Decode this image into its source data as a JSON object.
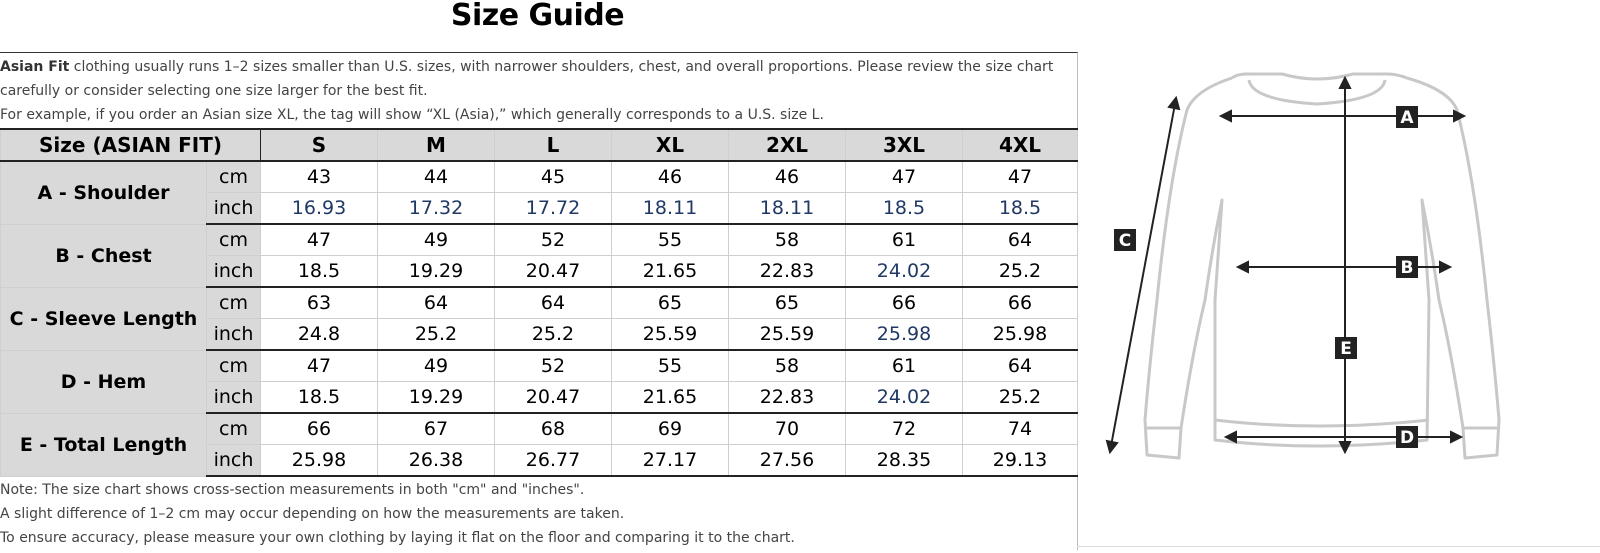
{
  "title": "Size Guide",
  "intro": {
    "bold_lead": "Asian Fit",
    "line1": " clothing usually runs 1–2 sizes smaller than U.S. sizes, with narrower shoulders, chest, and overall proportions. Please review the size chart carefully or consider selecting one size larger for the best fit.",
    "line2": "For example, if you order an Asian size XL, the tag will show “XL (Asia),” which generally corresponds to a U.S. size L."
  },
  "table": {
    "header": "Size (ASIAN FIT)",
    "sizes": [
      "S",
      "M",
      "L",
      "XL",
      "2XL",
      "3XL",
      "4XL"
    ],
    "unit_cm": "cm",
    "unit_inch": "inch",
    "rows": [
      {
        "label": "A - Shoulder",
        "cm": [
          "43",
          "44",
          "45",
          "46",
          "46",
          "47",
          "47"
        ],
        "inch": [
          "16.93",
          "17.32",
          "17.72",
          "18.11",
          "18.11",
          "18.5",
          "18.5"
        ]
      },
      {
        "label": "B - Chest",
        "cm": [
          "47",
          "49",
          "52",
          "55",
          "58",
          "61",
          "64"
        ],
        "inch": [
          "18.5",
          "19.29",
          "20.47",
          "21.65",
          "22.83",
          "24.02",
          "25.2"
        ]
      },
      {
        "label": "C - Sleeve Length",
        "cm": [
          "63",
          "64",
          "64",
          "65",
          "65",
          "66",
          "66"
        ],
        "inch": [
          "24.8",
          "25.2",
          "25.2",
          "25.59",
          "25.59",
          "25.98",
          "25.98"
        ]
      },
      {
        "label": "D - Hem",
        "cm": [
          "47",
          "49",
          "52",
          "55",
          "58",
          "61",
          "64"
        ],
        "inch": [
          "18.5",
          "19.29",
          "20.47",
          "21.65",
          "22.83",
          "24.02",
          "25.2"
        ]
      },
      {
        "label": "E - Total Length",
        "cm": [
          "66",
          "67",
          "68",
          "69",
          "70",
          "72",
          "74"
        ],
        "inch": [
          "25.98",
          "26.38",
          "26.77",
          "27.17",
          "27.56",
          "28.35",
          "29.13"
        ]
      }
    ]
  },
  "notes": [
    "Note: The size chart shows cross-section measurements in both \"cm\" and \"inches\".",
    "A slight difference of 1–2 cm may occur depending on how the measurements are taken.",
    "To ensure accuracy, please measure your own clothing by laying it flat on the floor and comparing it to the chart."
  ],
  "diagram": {
    "labels": {
      "a": "A",
      "b": "B",
      "c": "C",
      "d": "D",
      "e": "E"
    },
    "outline_color": "#c8c8c8",
    "arrow_color": "#222222"
  }
}
